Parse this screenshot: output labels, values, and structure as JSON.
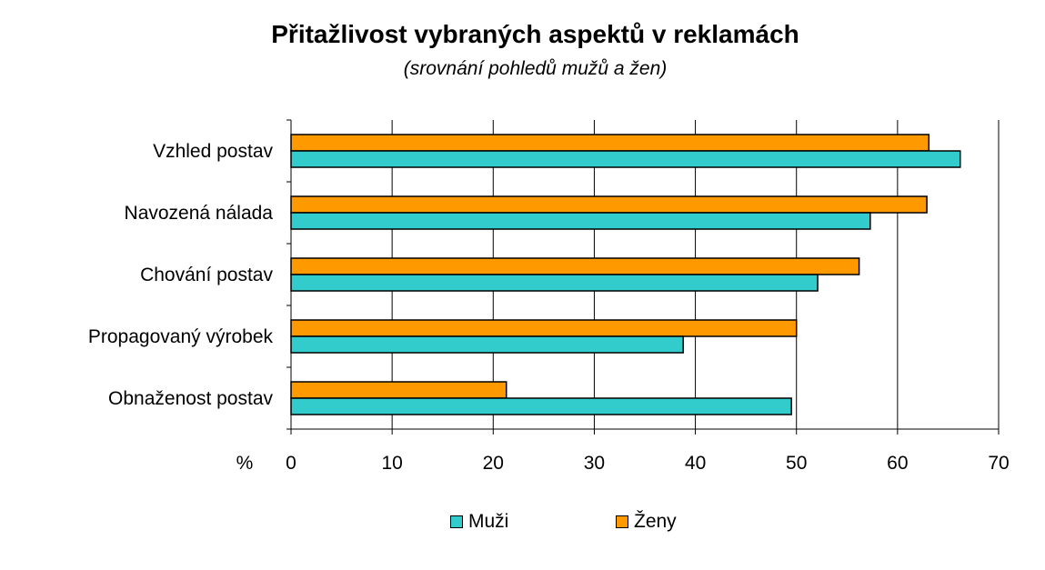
{
  "title": "Přitažlivost vybraných aspektů v reklamách",
  "subtitle": "(srovnání pohledů mužů a žen)",
  "chart_data": {
    "type": "bar",
    "orientation": "horizontal",
    "title": "Přitažlivost vybraných aspektů v reklamách",
    "subtitle": "(srovnání pohledů mužů a žen)",
    "xlabel": "%",
    "ylabel": "",
    "xlim": [
      0,
      70
    ],
    "xticks": [
      0,
      10,
      20,
      30,
      40,
      50,
      60,
      70
    ],
    "grid": "vertical",
    "legend_position": "bottom",
    "categories": [
      "Vzhled postav",
      "Navozená nálada",
      "Chování postav",
      "Propagovaný výrobek",
      "Obnaženost postav"
    ],
    "series": [
      {
        "name": "Muži",
        "color": "#33CCCC",
        "values": [
          66.2,
          57.3,
          52.1,
          38.8,
          49.5
        ]
      },
      {
        "name": "Ženy",
        "color": "#FF9900",
        "values": [
          63.1,
          62.9,
          56.2,
          50.0,
          21.3
        ]
      }
    ]
  }
}
